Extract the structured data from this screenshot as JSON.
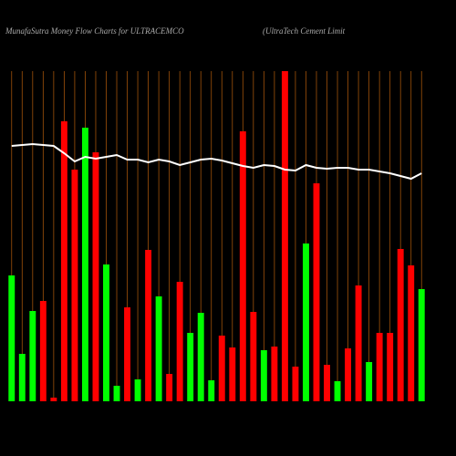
{
  "chart_data": {
    "type": "bar",
    "title": "MunafaSutra  Money Flow  Charts for ULTRACEMCO",
    "subtitle": "(UltraTech Cement Limit",
    "categories": [
      null,
      null,
      null,
      null,
      null,
      null,
      null,
      null,
      null,
      null,
      null,
      null,
      null,
      null,
      null,
      null,
      null,
      null,
      null,
      null,
      null,
      null,
      null,
      null,
      null,
      null,
      null,
      null,
      null,
      null,
      null,
      null,
      null,
      null,
      null,
      null,
      null,
      null,
      null,
      null
    ],
    "values": [
      138,
      52,
      99,
      110,
      4,
      307,
      254,
      300,
      273,
      150,
      17,
      103,
      24,
      166,
      115,
      30,
      131,
      75,
      97,
      23,
      72,
      59,
      296,
      98,
      56,
      60,
      362,
      38,
      173,
      239,
      40,
      22,
      58,
      127,
      43,
      75,
      75,
      167,
      149,
      123
    ],
    "colors": [
      "#00ff00",
      "#00ff00",
      "#00ff00",
      "#ff0000",
      "#ff0000",
      "#ff0000",
      "#ff0000",
      "#00ff00",
      "#ff0000",
      "#00ff00",
      "#00ff00",
      "#ff0000",
      "#00ff00",
      "#ff0000",
      "#00ff00",
      "#ff0000",
      "#ff0000",
      "#00ff00",
      "#00ff00",
      "#00ff00",
      "#ff0000",
      "#ff0000",
      "#ff0000",
      "#ff0000",
      "#00ff00",
      "#ff0000",
      "#ff0000",
      "#ff0000",
      "#00ff00",
      "#ff0000",
      "#ff0000",
      "#00ff00",
      "#ff0000",
      "#ff0000",
      "#00ff00",
      "#ff0000",
      "#ff0000",
      "#ff0000",
      "#ff0000",
      "#00ff00"
    ],
    "line": {
      "color": "#ffffff",
      "values": [
        280,
        281,
        282,
        281,
        280,
        272,
        263,
        268,
        266,
        268,
        270,
        265,
        265,
        262,
        265,
        263,
        259,
        262,
        265,
        266,
        264,
        261,
        258,
        256,
        259,
        258,
        254,
        253,
        259,
        256,
        255,
        256,
        256,
        254,
        254,
        252,
        250,
        247,
        244,
        250
      ]
    },
    "ylim": [
      0,
      362
    ],
    "grid": true,
    "grid_color": "#a0520a"
  }
}
